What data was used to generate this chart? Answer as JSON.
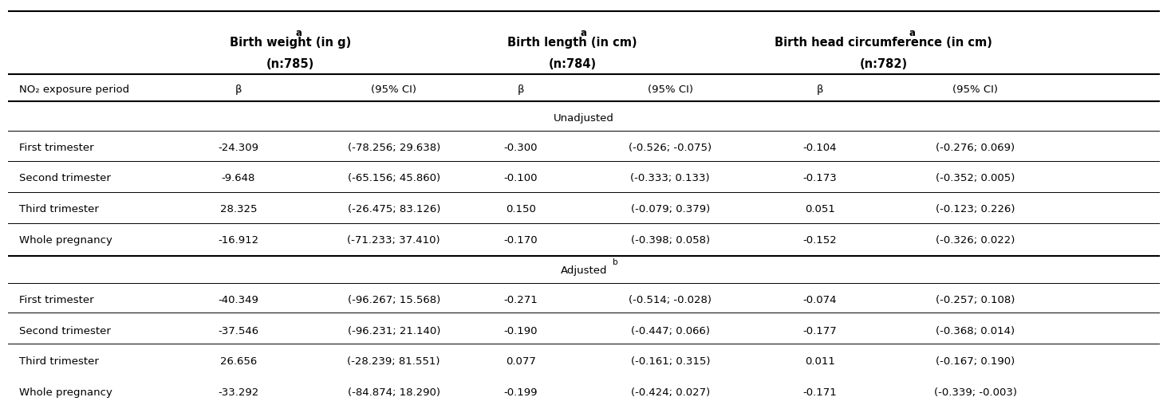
{
  "col_headers": [
    {
      "text": "Birth weight (in g)",
      "superscript": "a",
      "subtext": "(n:785)",
      "bold": true
    },
    {
      "text": "Birth length (in cm)",
      "superscript": "a",
      "subtext": "(n:784)",
      "bold": true
    },
    {
      "text": "Birth head circumference (in cm)",
      "superscript": "a",
      "subtext": "(n:782)",
      "bold": true
    }
  ],
  "subheaders": [
    "β",
    "(95% CI)",
    "β",
    "(95% CI)",
    "β",
    "(95% CI)"
  ],
  "row_label_header": "NO₂ exposure period",
  "section_unadjusted": "Unadjusted",
  "section_adjusted": "Adjusted",
  "adjusted_superscript": "b",
  "rows_unadjusted": [
    {
      "label": "First trimester",
      "bw_b": "-24.309",
      "bw_ci": "(-78.256; 29.638)",
      "bl_b": "-0.300",
      "bl_ci": "(-0.526; -0.075)",
      "bhc_b": "-0.104",
      "bhc_ci": "(-0.276; 0.069)"
    },
    {
      "label": "Second trimester",
      "bw_b": "-9.648",
      "bw_ci": "(-65.156; 45.860)",
      "bl_b": "-0.100",
      "bl_ci": "(-0.333; 0.133)",
      "bhc_b": "-0.173",
      "bhc_ci": "(-0.352; 0.005)"
    },
    {
      "label": "Third trimester",
      "bw_b": "28.325",
      "bw_ci": "(-26.475; 83.126)",
      "bl_b": "0.150",
      "bl_ci": "(-0.079; 0.379)",
      "bhc_b": "0.051",
      "bhc_ci": "(-0.123; 0.226)"
    },
    {
      "label": "Whole pregnancy",
      "bw_b": "-16.912",
      "bw_ci": "(-71.233; 37.410)",
      "bl_b": "-0.170",
      "bl_ci": "(-0.398; 0.058)",
      "bhc_b": "-0.152",
      "bhc_ci": "(-0.326; 0.022)"
    }
  ],
  "rows_adjusted": [
    {
      "label": "First trimester",
      "bw_b": "-40.349",
      "bw_ci": "(-96.267; 15.568)",
      "bl_b": "-0.271",
      "bl_ci": "(-0.514; -0.028)",
      "bhc_b": "-0.074",
      "bhc_ci": "(-0.257; 0.108)"
    },
    {
      "label": "Second trimester",
      "bw_b": "-37.546",
      "bw_ci": "(-96.231; 21.140)",
      "bl_b": "-0.190",
      "bl_ci": "(-0.447; 0.066)",
      "bhc_b": "-0.177",
      "bhc_ci": "(-0.368; 0.014)"
    },
    {
      "label": "Third trimester",
      "bw_b": "26.656",
      "bw_ci": "(-28.239; 81.551)",
      "bl_b": "0.077",
      "bl_ci": "(-0.161; 0.315)",
      "bhc_b": "0.011",
      "bhc_ci": "(-0.167; 0.190)"
    },
    {
      "label": "Whole pregnancy",
      "bw_b": "-33.292",
      "bw_ci": "(-84.874; 18.290)",
      "bl_b": "-0.199",
      "bl_ci": "(-0.424; 0.027)",
      "bhc_b": "-0.171",
      "bhc_ci": "(-0.339; -0.003)"
    }
  ],
  "bg_color": "#ffffff",
  "text_color": "#000000",
  "line_color": "#000000",
  "font_size": 9.5,
  "header_font_size": 10.5
}
